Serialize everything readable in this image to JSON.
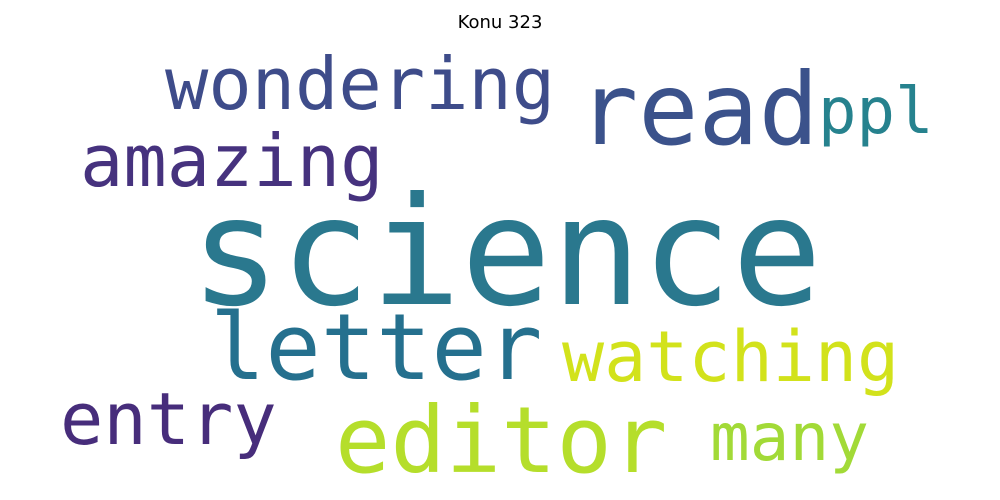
{
  "title": "Konu 323",
  "words": [
    {
      "text": "science",
      "color": "#2a788e"
    },
    {
      "text": "read",
      "color": "#3b528b"
    },
    {
      "text": "wondering",
      "color": "#3e4c8a"
    },
    {
      "text": "amazing",
      "color": "#46327e"
    },
    {
      "text": "ppl",
      "color": "#26828e"
    },
    {
      "text": "letter",
      "color": "#25708e"
    },
    {
      "text": "watching",
      "color": "#d2e21b"
    },
    {
      "text": "entry",
      "color": "#472d7b"
    },
    {
      "text": "editor",
      "color": "#b5de2b"
    },
    {
      "text": "many",
      "color": "#a2da37"
    }
  ]
}
